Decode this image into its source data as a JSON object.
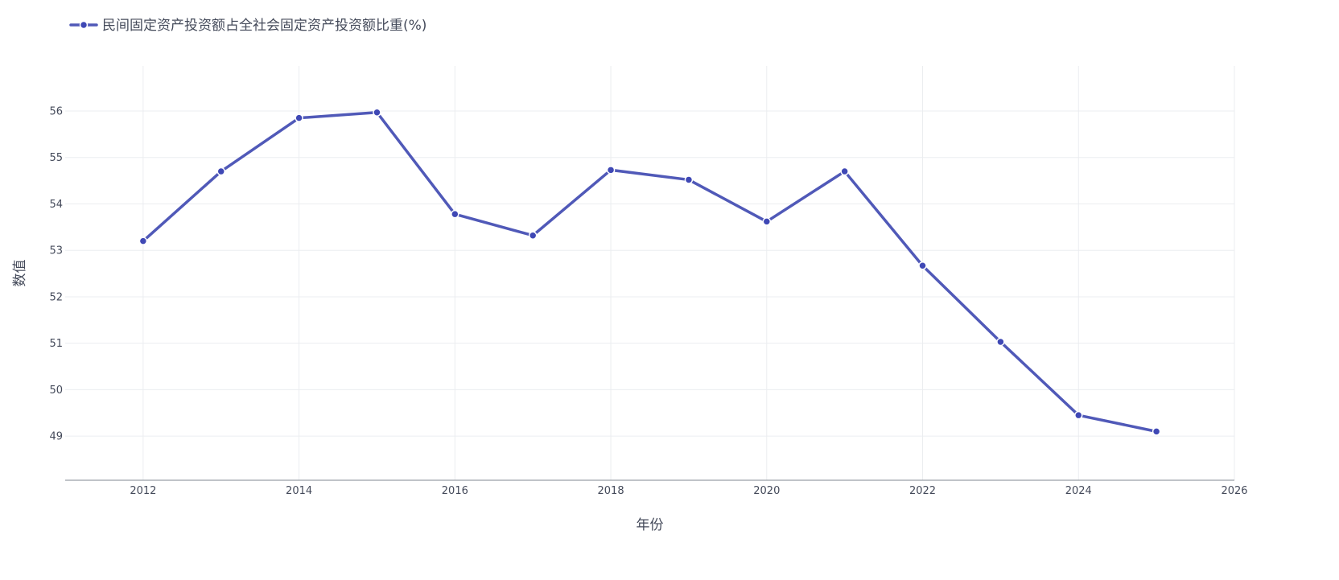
{
  "chart_data": {
    "type": "line",
    "x": [
      2012,
      2013,
      2014,
      2015,
      2016,
      2017,
      2018,
      2019,
      2020,
      2021,
      2022,
      2023,
      2024,
      2025
    ],
    "series": [
      {
        "name": "民间固定资产投资额占全社会固定资产投资额比重(%)",
        "values": [
          53.2,
          54.7,
          55.85,
          55.97,
          53.78,
          53.32,
          54.73,
          54.52,
          53.62,
          54.7,
          52.67,
          51.03,
          49.45,
          49.1
        ],
        "color": "#5059b8"
      }
    ],
    "xlabel": "年份",
    "ylabel": "数值",
    "xlim": [
      2011,
      2026
    ],
    "ylim": [
      48.05,
      56.97
    ],
    "x_ticks": [
      "2012",
      "2014",
      "2016",
      "2018",
      "2020",
      "2022",
      "2024",
      "2026"
    ],
    "y_ticks": [
      "49",
      "50",
      "51",
      "52",
      "53",
      "54",
      "55",
      "56"
    ],
    "grid": true,
    "legend_position": "top-left"
  }
}
